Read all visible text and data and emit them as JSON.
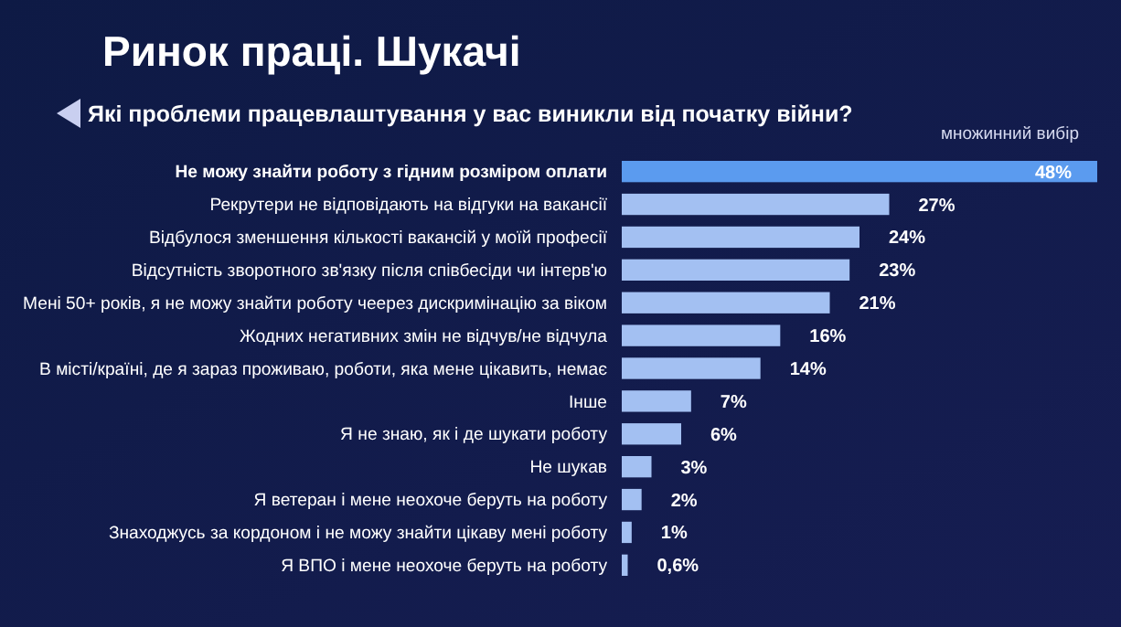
{
  "chart_data": {
    "type": "bar",
    "orientation": "horizontal",
    "title": "Ринок праці. Шукачі",
    "subtitle": "Які проблеми працевлаштування у вас виникли від початку війни?",
    "annotations": [
      "множинний вибір"
    ],
    "categories": [
      "Не можу знайти роботу з гідним розміром оплати",
      "Рекрутери не відповідають на відгуки на вакансії",
      "Відбулося зменшення кількості вакансій у моїй професії",
      "Відсутність зворотного зв'язку після співбесіди чи інтерв'ю",
      "Мені 50+ років, я не можу знайти роботу чеерез дискримінацію за віком",
      "Жодних негативних змін не відчув/не відчула",
      "В місті/країні, де я зараз проживаю, роботи, яка мене цікавить, немає",
      "Інше",
      "Я не знаю, як і де шукати роботу",
      "Не шукав",
      "Я ветеран і мене неохоче беруть на роботу",
      "Знаходжусь за кордоном і не можу знайти цікаву мені роботу",
      "Я ВПО і мене неохоче беруть на роботу"
    ],
    "values": [
      48,
      27,
      24,
      23,
      21,
      16,
      14,
      7,
      6,
      3,
      2,
      1,
      0.6
    ],
    "value_labels": [
      "48%",
      "27%",
      "24%",
      "23%",
      "21%",
      "16%",
      "14%",
      "7%",
      "6%",
      "3%",
      "2%",
      "1%",
      "0,6%"
    ],
    "colors": [
      "#5b9bef",
      "#a3c0f2",
      "#a3c0f2",
      "#a3c0f2",
      "#a3c0f2",
      "#a3c0f2",
      "#a3c0f2",
      "#a3c0f2",
      "#a3c0f2",
      "#a3c0f2",
      "#a3c0f2",
      "#a3c0f2",
      "#a3c0f2"
    ]
  }
}
